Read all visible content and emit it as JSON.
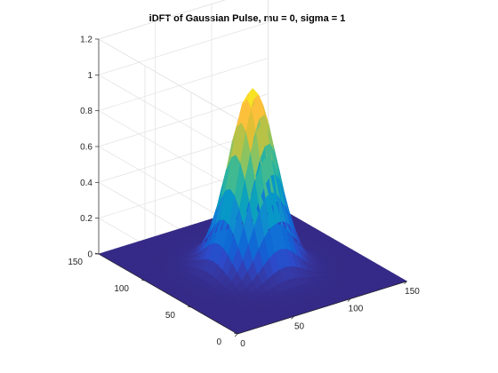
{
  "chart_data": {
    "type": "surface",
    "title": "iDFT of Gaussian Pulse, mu = 0, sigma = 1",
    "xlabel": "",
    "ylabel": "",
    "zlabel": "",
    "surface": {
      "function": "gaussian",
      "peak": 1.0,
      "center_x": 75,
      "center_y": 75,
      "sigma": 16.5,
      "grid_step": 5,
      "colormap": "parula"
    },
    "xlim": [
      0,
      150
    ],
    "ylim": [
      0,
      150
    ],
    "zlim": [
      0,
      1.2
    ],
    "x_ticks": [
      "0",
      "50",
      "100",
      "150"
    ],
    "y_ticks": [
      "0",
      "50",
      "100",
      "150"
    ],
    "z_ticks": [
      "0",
      "0.2",
      "0.4",
      "0.6",
      "0.8",
      "1",
      "1.2"
    ],
    "grid": true,
    "box": true
  }
}
